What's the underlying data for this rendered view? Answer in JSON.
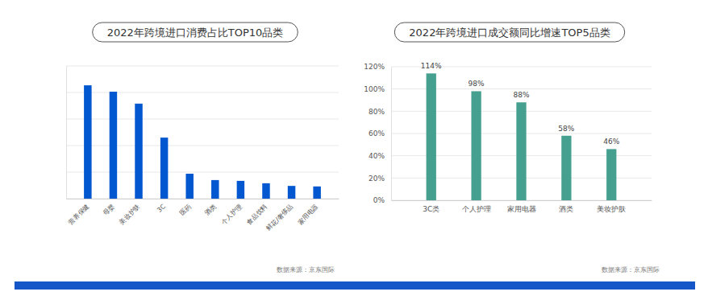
{
  "chart_data": [
    {
      "type": "bar",
      "title": "2022年跨境进口消费占比TOP10品类",
      "categories": [
        "营养保健",
        "母婴",
        "美妆护肤",
        "3C",
        "医药",
        "酒类",
        "个人护理",
        "食品饮料",
        "鲜花/奢侈品",
        "家用电器"
      ],
      "values": [
        4.27,
        4.03,
        3.58,
        2.3,
        0.94,
        0.7,
        0.67,
        0.58,
        0.48,
        0.46
      ],
      "color": "#0057cf",
      "ylim": [
        0,
        5
      ],
      "yticks": [
        0,
        1,
        2,
        3,
        4,
        5
      ],
      "grid": true,
      "tick_labels": "x",
      "source": "数据来源：京东国际"
    },
    {
      "type": "bar",
      "title": "2022年跨境进口成交额同比增速TOP5品类",
      "categories": [
        "3C类",
        "个人护理",
        "家用电器",
        "酒类",
        "美妆护肤"
      ],
      "values": [
        114,
        98,
        88,
        58,
        46
      ],
      "value_labels": [
        "114%",
        "98%",
        "88%",
        "58%",
        "46%"
      ],
      "color": "#45a08f",
      "ylim": [
        0,
        120
      ],
      "yticks": [
        {
          "value": 0,
          "label": "0%"
        },
        {
          "value": 20,
          "label": "20%"
        },
        {
          "value": 40,
          "label": "40%"
        },
        {
          "value": 60,
          "label": "60%"
        },
        {
          "value": 80,
          "label": "80%"
        },
        {
          "value": 100,
          "label": "100%"
        },
        {
          "value": 120,
          "label": "120%"
        }
      ],
      "grid": true,
      "data_labels": true,
      "source": "数据来源：京东国际"
    }
  ]
}
